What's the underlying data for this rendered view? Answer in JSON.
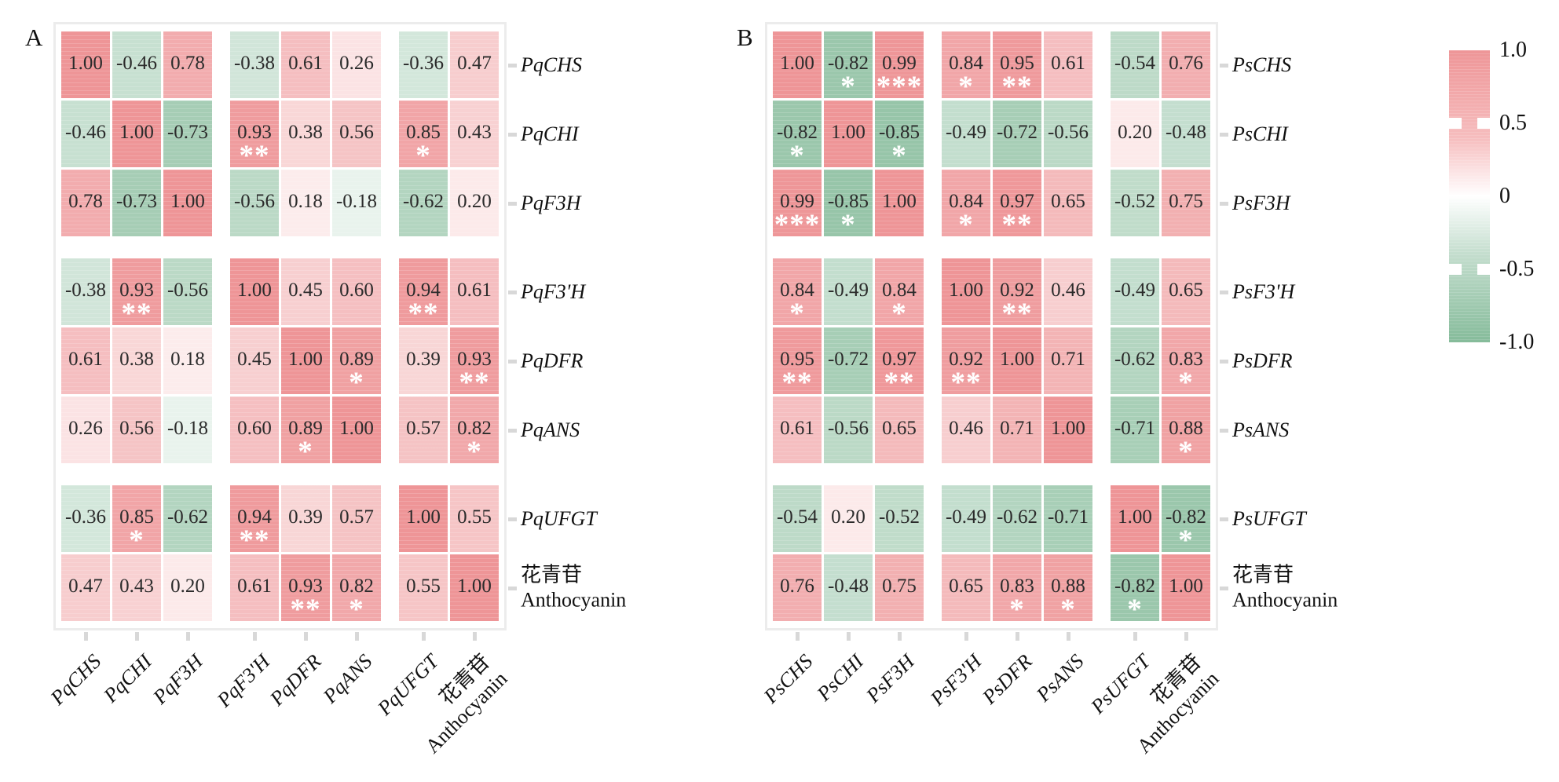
{
  "figure": {
    "legend": {
      "ticks": [
        "1.0",
        "0.5",
        "0",
        "-0.5",
        "-1.0"
      ]
    },
    "colors": {
      "positive_end": "#ee9597",
      "negative_end": "#85bb9a",
      "zero": "#ffffff",
      "value_text": "#2b2b2b",
      "significance_text": "#ffffff",
      "frame": "#ececec",
      "tick": "#d8d8d8"
    }
  },
  "chart_data": [
    {
      "type": "heatmap",
      "title": "A",
      "x_labels": [
        "PqCHS",
        "PqCHI",
        "PqF3H",
        "PqF3'H",
        "PqDFR",
        "PqANS",
        "PqUFGT",
        "花青苷\nAnthocyanin"
      ],
      "y_labels": [
        "PqCHS",
        "PqCHI",
        "PqF3H",
        "PqF3'H",
        "PqDFR",
        "PqANS",
        "PqUFGT",
        "花青苷\nAnthocyanin"
      ],
      "values": [
        [
          1.0,
          -0.46,
          0.78,
          -0.38,
          0.61,
          0.26,
          -0.36,
          0.47
        ],
        [
          -0.46,
          1.0,
          -0.73,
          0.93,
          0.38,
          0.56,
          0.85,
          0.43
        ],
        [
          0.78,
          -0.73,
          1.0,
          -0.56,
          0.18,
          -0.18,
          -0.62,
          0.2
        ],
        [
          -0.38,
          0.93,
          -0.56,
          1.0,
          0.45,
          0.6,
          0.94,
          0.61
        ],
        [
          0.61,
          0.38,
          0.18,
          0.45,
          1.0,
          0.89,
          0.39,
          0.93
        ],
        [
          0.26,
          0.56,
          -0.18,
          0.6,
          0.89,
          1.0,
          0.57,
          0.82
        ],
        [
          -0.36,
          0.85,
          -0.62,
          0.94,
          0.39,
          0.57,
          1.0,
          0.55
        ],
        [
          0.47,
          0.43,
          0.2,
          0.61,
          0.93,
          0.82,
          0.55,
          1.0
        ]
      ],
      "significance": [
        [
          "",
          "",
          "",
          "",
          "",
          "",
          "",
          ""
        ],
        [
          "",
          "",
          "",
          "**",
          "",
          "",
          "*",
          ""
        ],
        [
          "",
          "",
          "",
          "",
          "",
          "",
          "",
          ""
        ],
        [
          "",
          "**",
          "",
          "",
          "",
          "",
          "**",
          ""
        ],
        [
          "",
          "",
          "",
          "",
          "",
          "*",
          "",
          "**"
        ],
        [
          "",
          "",
          "",
          "",
          "*",
          "",
          "",
          "*"
        ],
        [
          "",
          "*",
          "",
          "**",
          "",
          "",
          "",
          ""
        ],
        [
          "",
          "",
          "",
          "",
          "**",
          "*",
          "",
          ""
        ]
      ],
      "colorscale": {
        "min": -1,
        "max": 1,
        "min_color": "#85bb9a",
        "mid_color": "#ffffff",
        "max_color": "#ee9597"
      },
      "legend_ticks": [
        1.0,
        0.5,
        0,
        -0.5,
        -1.0
      ]
    },
    {
      "type": "heatmap",
      "title": "B",
      "x_labels": [
        "PsCHS",
        "PsCHI",
        "PsF3H",
        "PsF3'H",
        "PsDFR",
        "PsANS",
        "PsUFGT",
        "花青苷\nAnthocyanin"
      ],
      "y_labels": [
        "PsCHS",
        "PsCHI",
        "PsF3H",
        "PsF3'H",
        "PsDFR",
        "PsANS",
        "PsUFGT",
        "花青苷\nAnthocyanin"
      ],
      "values": [
        [
          1.0,
          -0.82,
          0.99,
          0.84,
          0.95,
          0.61,
          -0.54,
          0.76
        ],
        [
          -0.82,
          1.0,
          -0.85,
          -0.49,
          -0.72,
          -0.56,
          0.2,
          -0.48
        ],
        [
          0.99,
          -0.85,
          1.0,
          0.84,
          0.97,
          0.65,
          -0.52,
          0.75
        ],
        [
          0.84,
          -0.49,
          0.84,
          1.0,
          0.92,
          0.46,
          -0.49,
          0.65
        ],
        [
          0.95,
          -0.72,
          0.97,
          0.92,
          1.0,
          0.71,
          -0.62,
          0.83
        ],
        [
          0.61,
          -0.56,
          0.65,
          0.46,
          0.71,
          1.0,
          -0.71,
          0.88
        ],
        [
          -0.54,
          0.2,
          -0.52,
          -0.49,
          -0.62,
          -0.71,
          1.0,
          -0.82
        ],
        [
          0.76,
          -0.48,
          0.75,
          0.65,
          0.83,
          0.88,
          -0.82,
          1.0
        ]
      ],
      "significance": [
        [
          "",
          "*",
          "***",
          "*",
          "**",
          "",
          "",
          ""
        ],
        [
          "*",
          "",
          "*",
          "",
          "",
          "",
          "",
          ""
        ],
        [
          "***",
          "*",
          "",
          "*",
          "**",
          "",
          "",
          ""
        ],
        [
          "*",
          "",
          "*",
          "",
          "**",
          "",
          "",
          ""
        ],
        [
          "**",
          "",
          "**",
          "**",
          "",
          "",
          "",
          "*"
        ],
        [
          "",
          "",
          "",
          "",
          "",
          "",
          "",
          "*"
        ],
        [
          "",
          "",
          "",
          "",
          "",
          "",
          "",
          "*"
        ],
        [
          "",
          "",
          "",
          "",
          "*",
          "*",
          "*",
          ""
        ]
      ],
      "colorscale": {
        "min": -1,
        "max": 1,
        "min_color": "#85bb9a",
        "mid_color": "#ffffff",
        "max_color": "#ee9597"
      },
      "legend_ticks": [
        1.0,
        0.5,
        0,
        -0.5,
        -1.0
      ]
    }
  ]
}
